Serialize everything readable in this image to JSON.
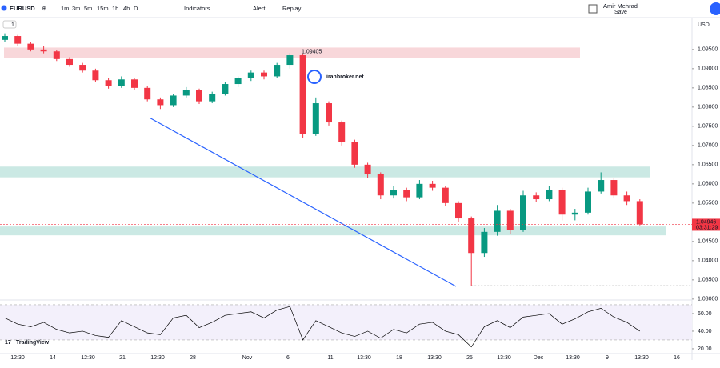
{
  "toolbar": {
    "symbol": "EURUSD",
    "intervals": [
      "1m",
      "3m",
      "5m",
      "15m",
      "1h",
      "4h",
      "D"
    ],
    "indicators": "Indicators",
    "alert": "Alert",
    "replay": "Replay",
    "user": "Amir Mehrad",
    "save": "Save",
    "currency": "USD",
    "pane_label": "1"
  },
  "chart_data": {
    "type": "candlestick",
    "watermark": "iranbroker.net",
    "brand": "TradingView",
    "up_color": "#089981",
    "down_color": "#f23645",
    "ylim": [
      1.0308,
      1.1033
    ],
    "yticks": [
      {
        "value": 1.095,
        "label": "1.09500"
      },
      {
        "value": 1.09,
        "label": "1.09000"
      },
      {
        "value": 1.085,
        "label": "1.08500"
      },
      {
        "value": 1.08,
        "label": "1.08000"
      },
      {
        "value": 1.075,
        "label": "1.07500"
      },
      {
        "value": 1.07,
        "label": "1.07000"
      },
      {
        "value": 1.065,
        "label": "1.06500"
      },
      {
        "value": 1.06,
        "label": "1.06000"
      },
      {
        "value": 1.055,
        "label": "1.05500"
      },
      {
        "value": 1.045,
        "label": "1.04500"
      },
      {
        "value": 1.04,
        "label": "1.04000"
      },
      {
        "value": 1.035,
        "label": "1.03500"
      },
      {
        "value": 1.03,
        "label": "1.03000"
      }
    ],
    "x": [
      "12:30",
      "14",
      "12:30",
      "21",
      "12:30",
      "28",
      "Nov",
      "6",
      "11",
      "13:30",
      "18",
      "13:30",
      "25",
      "13:30",
      "Dec",
      "13:30",
      "9",
      "13:30",
      "16"
    ],
    "ohlc": [
      [
        1.0975,
        1.0992,
        1.097,
        1.0985
      ],
      [
        1.0985,
        1.0988,
        1.096,
        1.0965
      ],
      [
        1.0965,
        1.097,
        1.0945,
        1.095
      ],
      [
        1.095,
        1.0958,
        1.094,
        1.0945
      ],
      [
        1.0945,
        1.0948,
        1.092,
        1.0925
      ],
      [
        1.0925,
        1.093,
        1.0905,
        1.091
      ],
      [
        1.091,
        1.0915,
        1.089,
        1.0895
      ],
      [
        1.0895,
        1.09,
        1.0865,
        1.087
      ],
      [
        1.087,
        1.0875,
        1.0848,
        1.0855
      ],
      [
        1.0855,
        1.088,
        1.085,
        1.0872
      ],
      [
        1.0872,
        1.0876,
        1.0845,
        1.085
      ],
      [
        1.085,
        1.0855,
        1.0815,
        1.082
      ],
      [
        1.082,
        1.0825,
        1.0795,
        1.0805
      ],
      [
        1.0805,
        1.0835,
        1.08,
        1.083
      ],
      [
        1.083,
        1.0852,
        1.0825,
        1.0845
      ],
      [
        1.0845,
        1.0848,
        1.0808,
        1.0815
      ],
      [
        1.0815,
        1.084,
        1.081,
        1.0835
      ],
      [
        1.0835,
        1.0865,
        1.083,
        1.086
      ],
      [
        1.086,
        1.088,
        1.0852,
        1.0875
      ],
      [
        1.0875,
        1.0895,
        1.0868,
        1.089
      ],
      [
        1.089,
        1.0895,
        1.0872,
        1.088
      ],
      [
        1.088,
        1.0915,
        1.0875,
        1.091
      ],
      [
        1.091,
        1.09405,
        1.09,
        1.0935
      ],
      [
        1.0935,
        1.0938,
        1.072,
        1.073
      ],
      [
        1.073,
        1.0825,
        1.0725,
        1.081
      ],
      [
        1.081,
        1.0815,
        1.0752,
        1.076
      ],
      [
        1.076,
        1.0765,
        1.07,
        1.071
      ],
      [
        1.071,
        1.0715,
        1.0642,
        1.065
      ],
      [
        1.065,
        1.0655,
        1.0615,
        1.0625
      ],
      [
        1.0625,
        1.063,
        1.056,
        1.057
      ],
      [
        1.057,
        1.0595,
        1.0562,
        1.0585
      ],
      [
        1.0585,
        1.059,
        1.0555,
        1.0565
      ],
      [
        1.0565,
        1.061,
        1.056,
        1.06
      ],
      [
        1.06,
        1.0608,
        1.0582,
        1.059
      ],
      [
        1.059,
        1.0595,
        1.0542,
        1.055
      ],
      [
        1.055,
        1.0555,
        1.05,
        1.051
      ],
      [
        1.051,
        1.0515,
        1.0335,
        1.042
      ],
      [
        1.042,
        1.0485,
        1.041,
        1.0475
      ],
      [
        1.0475,
        1.0545,
        1.0465,
        1.053
      ],
      [
        1.053,
        1.0535,
        1.047,
        1.048
      ],
      [
        1.048,
        1.0582,
        1.0475,
        1.057
      ],
      [
        1.057,
        1.0578,
        1.0552,
        1.056
      ],
      [
        1.056,
        1.0595,
        1.0555,
        1.0585
      ],
      [
        1.0585,
        1.059,
        1.0505,
        1.052
      ],
      [
        1.052,
        1.0535,
        1.0505,
        1.0525
      ],
      [
        1.0525,
        1.059,
        1.052,
        1.058
      ],
      [
        1.058,
        1.063,
        1.0575,
        1.061
      ],
      [
        1.061,
        1.0615,
        1.0562,
        1.057
      ],
      [
        1.057,
        1.058,
        1.0545,
        1.0555
      ],
      [
        1.0555,
        1.056,
        1.0492,
        1.04946
      ]
    ],
    "zones": [
      {
        "top": 1.0955,
        "bottom": 1.0927,
        "color": "#f8d7da",
        "label": "1.09405"
      },
      {
        "top": 1.0645,
        "bottom": 1.0617,
        "color": "#cbe9e4"
      },
      {
        "top": 1.0489,
        "bottom": 1.0466,
        "color": "#cbe9e4"
      }
    ],
    "trendline": [
      1.0771,
      1.0333
    ],
    "trend_color": "#2962ff",
    "last_price": {
      "value": 1.04946,
      "label": "1.04946",
      "countdown": "03:31:29"
    },
    "rsi": {
      "values": [
        55,
        48,
        45,
        50,
        42,
        38,
        40,
        35,
        33,
        52,
        45,
        38,
        36,
        55,
        58,
        44,
        50,
        58,
        60,
        62,
        55,
        64,
        68,
        30,
        52,
        45,
        38,
        34,
        40,
        32,
        42,
        38,
        48,
        50,
        40,
        36,
        22,
        45,
        52,
        44,
        56,
        58,
        60,
        48,
        54,
        62,
        66,
        56,
        50,
        40
      ],
      "ylim": [
        14.5,
        72.7
      ],
      "band": [
        30,
        70
      ],
      "yticks": [
        {
          "value": 60,
          "label": "60.00"
        },
        {
          "value": 40,
          "label": "40.00"
        },
        {
          "value": 20,
          "label": "20.00"
        }
      ]
    }
  }
}
